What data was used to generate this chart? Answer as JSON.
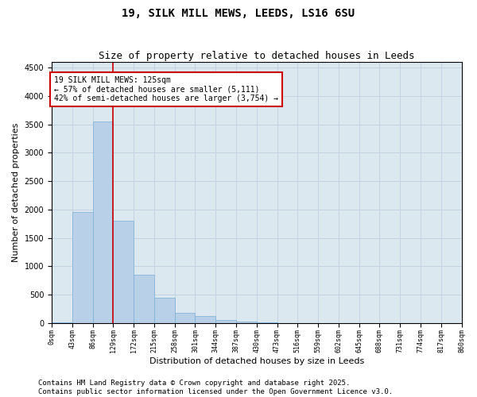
{
  "title_line1": "19, SILK MILL MEWS, LEEDS, LS16 6SU",
  "title_line2": "Size of property relative to detached houses in Leeds",
  "xlabel": "Distribution of detached houses by size in Leeds",
  "ylabel": "Number of detached properties",
  "bar_edges": [
    0,
    43,
    86,
    129,
    172,
    215,
    258,
    301,
    344,
    387,
    430,
    473,
    516,
    559,
    602,
    645,
    688,
    731,
    774,
    817,
    860
  ],
  "bar_heights": [
    5,
    1950,
    3550,
    1800,
    850,
    450,
    180,
    130,
    50,
    20,
    10,
    0,
    0,
    0,
    0,
    0,
    0,
    0,
    0,
    0
  ],
  "bar_color": "#b8d0e8",
  "bar_edgecolor": "#7aafd4",
  "property_line_x": 129,
  "property_line_color": "#cc0000",
  "annotation_text": "19 SILK MILL MEWS: 125sqm\n← 57% of detached houses are smaller (5,111)\n42% of semi-detached houses are larger (3,754) →",
  "annotation_box_color": "white",
  "annotation_box_edgecolor": "#cc0000",
  "ylim": [
    0,
    4600
  ],
  "yticks": [
    0,
    500,
    1000,
    1500,
    2000,
    2500,
    3000,
    3500,
    4000,
    4500
  ],
  "tick_labels": [
    "0sqm",
    "43sqm",
    "86sqm",
    "129sqm",
    "172sqm",
    "215sqm",
    "258sqm",
    "301sqm",
    "344sqm",
    "387sqm",
    "430sqm",
    "473sqm",
    "516sqm",
    "559sqm",
    "602sqm",
    "645sqm",
    "688sqm",
    "731sqm",
    "774sqm",
    "817sqm",
    "860sqm"
  ],
  "grid_color": "#c0d0e0",
  "background_color": "#dce8f0",
  "footer_text": "Contains HM Land Registry data © Crown copyright and database right 2025.\nContains public sector information licensed under the Open Government Licence v3.0.",
  "title_fontsize": 10,
  "subtitle_fontsize": 9,
  "annotation_fontsize": 7,
  "footer_fontsize": 6.5,
  "ylabel_fontsize": 8,
  "xlabel_fontsize": 8
}
